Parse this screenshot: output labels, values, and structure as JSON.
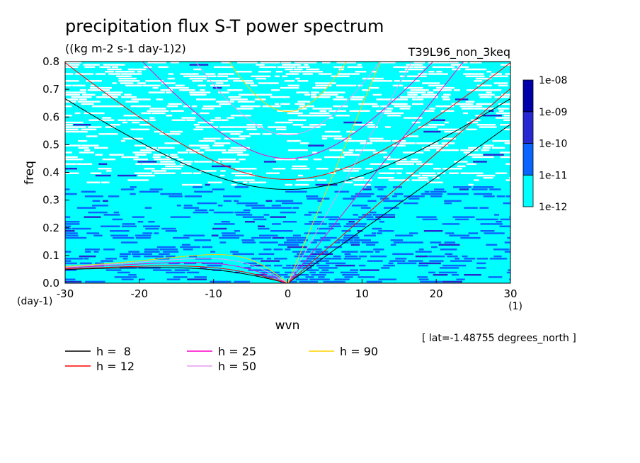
{
  "chart_data": {
    "type": "heatmap",
    "title": "precipitation flux S-T power spectrum",
    "units": "((kg m-2 s-1 day-1)2)",
    "experiment": "T39L96_non_3keq",
    "xlabel": "wvn",
    "ylabel": "freq",
    "xunit": "(1)",
    "yunit": "(day-1)",
    "xlim": [
      -30,
      30
    ],
    "ylim": [
      0,
      0.8
    ],
    "xticks": [
      "-30",
      "-20",
      "-10",
      "0",
      "10",
      "20",
      "30"
    ],
    "yticks": [
      "0.0",
      "0.1",
      "0.2",
      "0.3",
      "0.4",
      "0.5",
      "0.6",
      "0.7",
      "0.8"
    ],
    "latitude_note": "[ lat=-1.48755 degrees_north ]",
    "colorbar": {
      "levels": [
        "1e-12",
        "1e-11",
        "1e-10",
        "1e-09",
        "1e-08"
      ],
      "colors": [
        "#00ffff",
        "#0a64ff",
        "#2828d2",
        "#0000aa",
        "#4614aa"
      ]
    },
    "dispersion_curves": [
      {
        "name": "h =  8",
        "h": 8,
        "color": "#000000"
      },
      {
        "name": "h = 12",
        "h": 12,
        "color": "#ff0000"
      },
      {
        "name": "h = 25",
        "h": 25,
        "color": "#ff00c8"
      },
      {
        "name": "h = 50",
        "h": 50,
        "color": "#e89cf2"
      },
      {
        "name": "h = 90",
        "h": 90,
        "color": "#ffd200"
      }
    ],
    "curve_families": [
      "kelvin",
      "equatorial-rossby n=1",
      "inertia-gravity n=1"
    ],
    "grid": false,
    "legend_position": "bottom-left"
  }
}
